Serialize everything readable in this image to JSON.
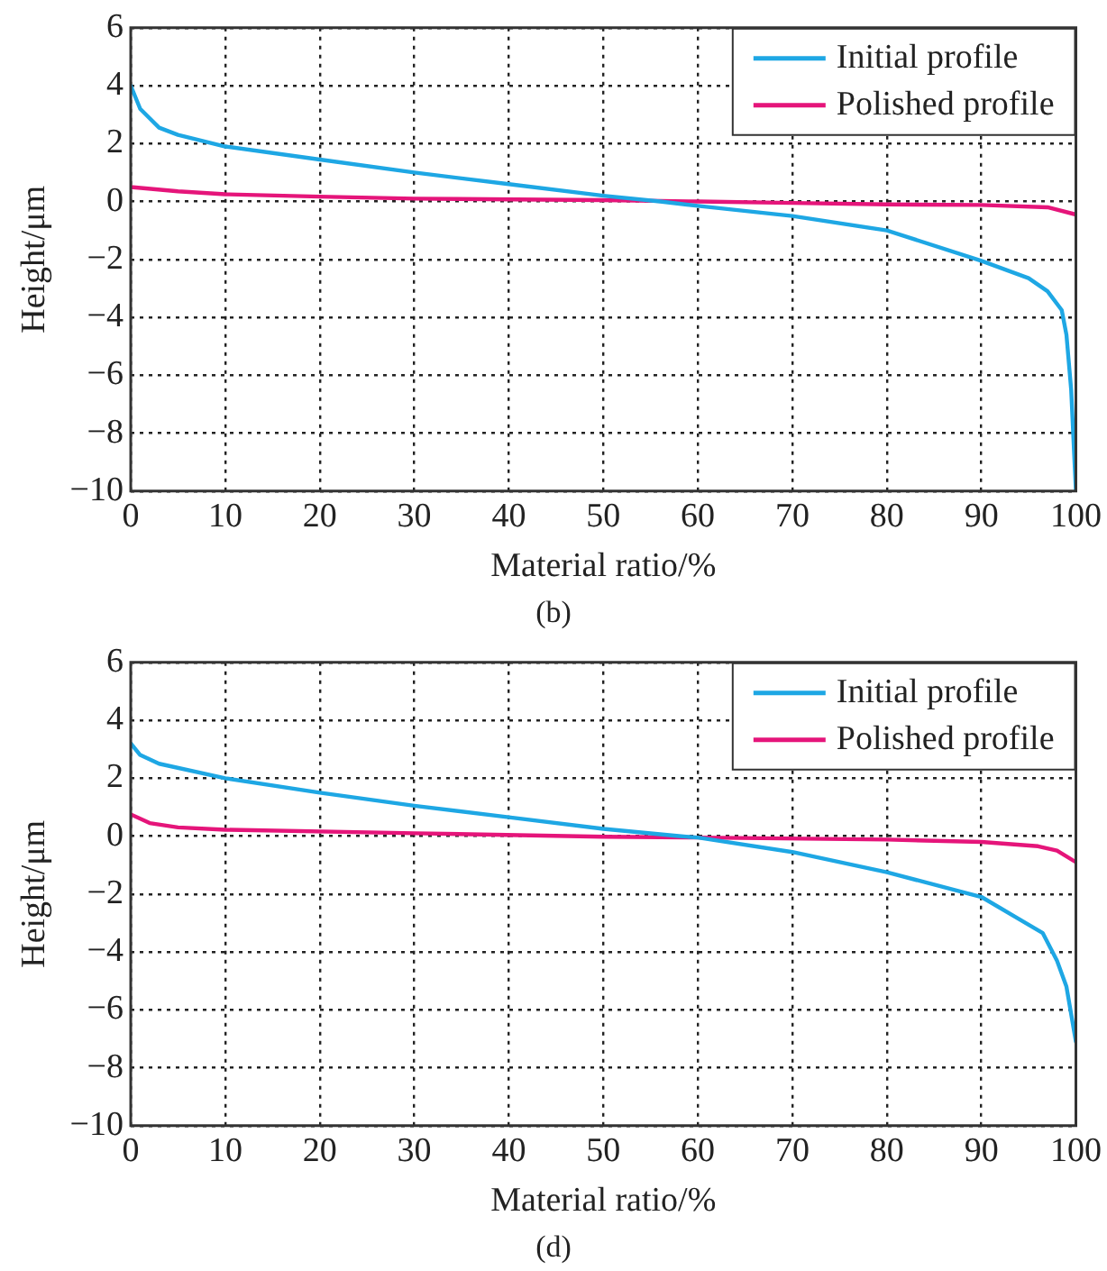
{
  "chart_data": [
    {
      "type": "line",
      "xlabel": "Material ratio/%",
      "ylabel": "Height/μm",
      "annotations": [
        "(b)"
      ],
      "xlim": [
        0,
        100
      ],
      "xticks": [
        0,
        10,
        20,
        30,
        40,
        50,
        60,
        70,
        80,
        90,
        100
      ],
      "ylim": [
        -10,
        6
      ],
      "yticks": [
        -10,
        -8,
        -6,
        -4,
        -2,
        0,
        2,
        4,
        6
      ],
      "grid": true,
      "legend": "top right",
      "line_style": "solid",
      "marker": "none",
      "series": [
        {
          "name": "Initial profile",
          "color": "#1ea7e4",
          "x": [
            0,
            1,
            3,
            5,
            10,
            20,
            30,
            40,
            50,
            56,
            60,
            70,
            80,
            90,
            95,
            97,
            98.5,
            99,
            99.5,
            100
          ],
          "values": [
            4,
            3.2,
            2.55,
            2.3,
            1.9,
            1.45,
            1.0,
            0.6,
            0.2,
            0,
            -0.15,
            -0.5,
            -1.0,
            -2.05,
            -2.65,
            -3.1,
            -3.75,
            -4.6,
            -6.5,
            -10
          ]
        },
        {
          "name": "Polished profile",
          "color": "#e5157a",
          "x": [
            0,
            5,
            10,
            20,
            30,
            50,
            60,
            70,
            80,
            90,
            97,
            100
          ],
          "values": [
            0.5,
            0.35,
            0.25,
            0.17,
            0.1,
            0.05,
            0,
            -0.05,
            -0.1,
            -0.12,
            -0.2,
            -0.45
          ]
        }
      ]
    },
    {
      "type": "line",
      "xlabel": "Material ratio/%",
      "ylabel": "Height/μm",
      "annotations": [
        "(d)"
      ],
      "xlim": [
        0,
        100
      ],
      "xticks": [
        0,
        10,
        20,
        30,
        40,
        50,
        60,
        70,
        80,
        90,
        100
      ],
      "ylim": [
        -10,
        6
      ],
      "yticks": [
        -10,
        -8,
        -6,
        -4,
        -2,
        0,
        2,
        4,
        6
      ],
      "grid": true,
      "legend": "top right",
      "line_style": "solid",
      "marker": "none",
      "series": [
        {
          "name": "Initial profile",
          "color": "#1ea7e4",
          "x": [
            0,
            1,
            3,
            10,
            20,
            30,
            40,
            50,
            58,
            60,
            70,
            80,
            90,
            96.5,
            98,
            99,
            100
          ],
          "values": [
            3.2,
            2.8,
            2.5,
            2.0,
            1.5,
            1.05,
            0.65,
            0.25,
            0,
            -0.05,
            -0.55,
            -1.25,
            -2.1,
            -3.35,
            -4.3,
            -5.2,
            -7.1
          ]
        },
        {
          "name": "Polished profile",
          "color": "#e5157a",
          "x": [
            0,
            2,
            5,
            10,
            30,
            50,
            60,
            80,
            90,
            96,
            98,
            100
          ],
          "values": [
            0.75,
            0.45,
            0.3,
            0.22,
            0.1,
            -0.02,
            -0.05,
            -0.12,
            -0.2,
            -0.35,
            -0.5,
            -0.9
          ]
        }
      ]
    }
  ]
}
